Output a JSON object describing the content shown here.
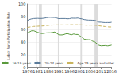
{
  "chart_data": {
    "type": "line",
    "y_label": "Labor Force Participation Rate",
    "x": [
      1976,
      1977,
      1978,
      1979,
      1980,
      1981,
      1982,
      1983,
      1984,
      1985,
      1986,
      1987,
      1988,
      1989,
      1990,
      1991,
      1992,
      1993,
      1994,
      1995,
      1996,
      1997,
      1998,
      1999,
      2000,
      2001,
      2002,
      2003,
      2004,
      2005,
      2006,
      2007,
      2008,
      2009,
      2010,
      2011,
      2012,
      2013,
      2014,
      2015,
      2016
    ],
    "series": [
      {
        "name": "16-19 years",
        "color": "#5a9a3c",
        "line_style": "solid",
        "values": [
          54.5,
          56.0,
          57.8,
          57.9,
          56.7,
          55.4,
          54.1,
          53.5,
          53.9,
          54.5,
          54.7,
          54.7,
          55.3,
          55.9,
          53.7,
          51.6,
          51.3,
          51.5,
          52.7,
          53.5,
          52.3,
          51.6,
          52.8,
          52.0,
          52.0,
          49.6,
          47.4,
          44.5,
          43.9,
          43.7,
          43.7,
          41.3,
          40.2,
          37.5,
          34.9,
          34.1,
          34.3,
          34.5,
          34.0,
          34.3,
          35.2
        ]
      },
      {
        "name": "20-24 years",
        "color": "#5b7b9a",
        "line_style": "solid",
        "values": [
          74.0,
          75.5,
          76.5,
          77.0,
          77.2,
          77.3,
          77.1,
          77.2,
          77.6,
          78.2,
          78.9,
          78.9,
          78.7,
          78.7,
          77.8,
          76.7,
          77.0,
          77.0,
          77.0,
          76.6,
          76.8,
          77.6,
          77.5,
          77.5,
          77.8,
          76.9,
          76.4,
          75.4,
          75.0,
          74.6,
          74.6,
          74.4,
          74.4,
          72.9,
          71.4,
          71.3,
          70.9,
          70.7,
          70.8,
          70.7,
          71.2
        ]
      },
      {
        "name": "Age 25 years and older",
        "color": "#c9b45e",
        "line_style": "dashed",
        "values": [
          63.2,
          63.6,
          64.2,
          64.6,
          64.8,
          65.0,
          65.2,
          65.3,
          65.6,
          66.0,
          66.4,
          66.6,
          66.8,
          67.1,
          67.1,
          67.0,
          67.1,
          67.0,
          67.0,
          67.1,
          67.2,
          67.4,
          67.3,
          67.3,
          67.3,
          67.2,
          67.0,
          66.9,
          66.6,
          66.6,
          66.7,
          66.6,
          66.6,
          66.3,
          65.6,
          65.2,
          64.8,
          64.4,
          64.0,
          63.8,
          63.8
        ]
      }
    ],
    "recessions": [
      [
        1980.0,
        1980.5
      ],
      [
        1981.5,
        1982.9
      ],
      [
        1990.5,
        1991.2
      ],
      [
        2001.2,
        2001.9
      ],
      [
        2007.9,
        2009.5
      ]
    ],
    "xlim": [
      1976,
      2016
    ],
    "xticks": [
      1976,
      1981,
      1986,
      1991,
      1996,
      2001,
      2006,
      2011,
      2016
    ],
    "ylim": [
      0,
      100
    ],
    "yticks": [
      0,
      20,
      40,
      60,
      80,
      100
    ],
    "grid": true,
    "legend": "bottom"
  }
}
